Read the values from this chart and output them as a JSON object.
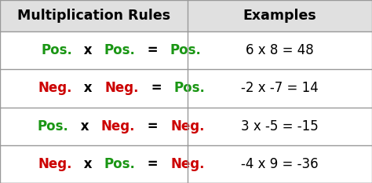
{
  "header": [
    "Multiplication Rules",
    "Examples"
  ],
  "rows": [
    {
      "rule_parts": [
        {
          "text": "Pos.",
          "color": "#1a9614"
        },
        {
          "text": " x ",
          "color": "#000000"
        },
        {
          "text": "Pos.",
          "color": "#1a9614"
        },
        {
          "text": " = ",
          "color": "#000000"
        },
        {
          "text": "Pos.",
          "color": "#1a9614"
        }
      ],
      "example": "6 x 8 = 48"
    },
    {
      "rule_parts": [
        {
          "text": "Neg.",
          "color": "#cc0000"
        },
        {
          "text": " x ",
          "color": "#000000"
        },
        {
          "text": "Neg.",
          "color": "#cc0000"
        },
        {
          "text": " = ",
          "color": "#000000"
        },
        {
          "text": "Pos.",
          "color": "#1a9614"
        }
      ],
      "example": "-2 x -7 = 14"
    },
    {
      "rule_parts": [
        {
          "text": "Pos.",
          "color": "#1a9614"
        },
        {
          "text": " x ",
          "color": "#000000"
        },
        {
          "text": "Neg.",
          "color": "#cc0000"
        },
        {
          "text": " = ",
          "color": "#000000"
        },
        {
          "text": "Neg.",
          "color": "#cc0000"
        }
      ],
      "example": "3 x -5 = -15"
    },
    {
      "rule_parts": [
        {
          "text": "Neg.",
          "color": "#cc0000"
        },
        {
          "text": " x ",
          "color": "#000000"
        },
        {
          "text": "Pos.",
          "color": "#1a9614"
        },
        {
          "text": " = ",
          "color": "#000000"
        },
        {
          "text": "Neg.",
          "color": "#cc0000"
        }
      ],
      "example": "-4 x 9 = -36"
    }
  ],
  "header_bg": "#e0e0e0",
  "row_bg": "#ffffff",
  "border_color": "#999999",
  "header_font_size": 12.5,
  "rule_font_size": 12,
  "example_font_size": 12,
  "col_split": 0.505
}
